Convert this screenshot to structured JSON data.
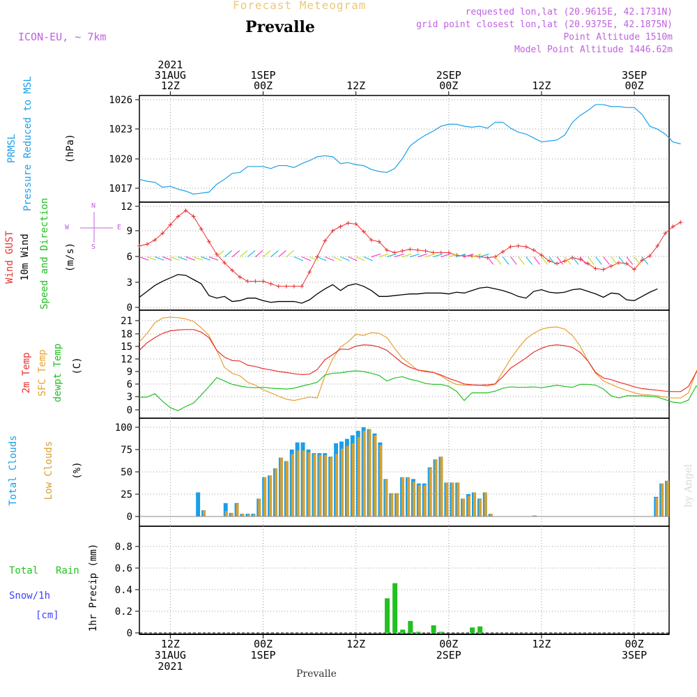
{
  "header": {
    "title": "Forecast Meteogram",
    "location": "Prevalle",
    "model": "ICON-EU, ~ 7km",
    "requested": "requested lon,lat (20.9615E, 42.1731N)",
    "grid_point": "grid point closest lon,lat (20.9375E, 42.1875N)",
    "point_alt": "Point Altitude 1510m",
    "model_alt": "Model Point Altitude 1446.62m",
    "credit": "by Angel",
    "footer": "Prevalle"
  },
  "colors": {
    "pressure": "#1a9fe8",
    "gust": "#e83030",
    "wind": "#000000",
    "temp2m": "#e83030",
    "sfctemp": "#e8a030",
    "dewpt": "#22c022",
    "total_clouds": "#1a9fe8",
    "low_clouds": "#d8a030",
    "rain": "#22c022",
    "snow": "#4040ff",
    "model_text": "#c060e0"
  },
  "time_axis": {
    "top_labels": [
      {
        "lines": [
          "2021",
          "31AUG",
          "12Z"
        ]
      },
      {
        "lines": [
          "1SEP",
          "00Z"
        ]
      },
      {
        "lines": [
          "12Z"
        ]
      },
      {
        "lines": [
          "2SEP",
          "00Z"
        ]
      },
      {
        "lines": [
          "12Z"
        ]
      },
      {
        "lines": [
          "3SEP",
          "00Z"
        ]
      }
    ],
    "bottom_labels": [
      {
        "lines": [
          "12Z",
          "31AUG",
          "2021"
        ]
      },
      {
        "lines": [
          "00Z",
          "1SEP"
        ]
      },
      {
        "lines": [
          "12Z"
        ]
      },
      {
        "lines": [
          "00Z",
          "2SEP"
        ]
      },
      {
        "lines": [
          "12Z"
        ]
      },
      {
        "lines": [
          "00Z",
          "3SEP"
        ]
      }
    ]
  },
  "panels": {
    "pressure": {
      "label1": "PRMSL",
      "label2": "Pressure Reduced to MSL",
      "unit": "(hPa)",
      "ticks": [
        "1026",
        "1023",
        "1020",
        "1017"
      ]
    },
    "wind": {
      "label_gust": "Wind GUST",
      "label_wind": "10m Wind",
      "label_dir": "Speed and Direction",
      "unit": "(m/s)",
      "ticks": [
        "12",
        "9",
        "6",
        "3",
        "0"
      ],
      "compass_n": "N",
      "compass_s": "S",
      "compass_w": "W",
      "compass_e": "E"
    },
    "temp": {
      "label1": "2m Temp",
      "label2": "SFC Temp",
      "label3": "dewpt Temp",
      "unit": "(C)",
      "ticks": [
        "21",
        "18",
        "15",
        "12",
        "9",
        "6",
        "3",
        "0"
      ]
    },
    "clouds": {
      "label1": "Total Clouds",
      "label2": "Low Clouds",
      "unit": "(%)",
      "ticks": [
        "100",
        "75",
        "50",
        "25",
        "0"
      ]
    },
    "precip": {
      "label1": "Total",
      "label2": "Rain",
      "label3": "Snow/1h",
      "label4": "[cm]",
      "axis_label": "1hr Precip (mm)",
      "ticks": [
        "0.8",
        "0.6",
        "0.4",
        "0.2",
        "0"
      ]
    }
  },
  "chart_data": [
    {
      "type": "line",
      "title": "PRMSL Pressure Reduced to MSL",
      "ylabel": "(hPa)",
      "ylim": [
        1016,
        1026.4
      ],
      "x_start": "2021-08-31 08Z",
      "x_step_hours": 1,
      "series": [
        {
          "name": "PRMSL",
          "values": [
            1017.9,
            1017.7,
            1017.6,
            1017.1,
            1017.2,
            1016.9,
            1016.7,
            1016.4,
            1016.5,
            1016.6,
            1017.4,
            1017.9,
            1018.5,
            1018.6,
            1019.2,
            1019.2,
            1019.2,
            1019.0,
            1019.3,
            1019.3,
            1019.1,
            1019.5,
            1019.8,
            1020.2,
            1020.3,
            1020.2,
            1019.5,
            1019.6,
            1019.4,
            1019.3,
            1018.9,
            1018.7,
            1018.6,
            1019.0,
            1020.0,
            1021.3,
            1021.9,
            1022.4,
            1022.8,
            1023.3,
            1023.5,
            1023.5,
            1023.3,
            1023.2,
            1023.3,
            1023.1,
            1023.7,
            1023.7,
            1023.1,
            1022.7,
            1022.5,
            1022.1,
            1021.7,
            1021.8,
            1021.9,
            1022.4,
            1023.7,
            1024.4,
            1024.9,
            1025.5,
            1025.5,
            1025.3,
            1025.3,
            1025.2,
            1025.2,
            1024.5,
            1023.3,
            1023.0,
            1022.5,
            1021.7,
            1021.5
          ]
        }
      ]
    },
    {
      "type": "line",
      "title": "Wind GUST / 10m Wind Speed and Direction",
      "ylabel": "(m/s)",
      "ylim": [
        0,
        12.3
      ],
      "x_start": "2021-08-31 08Z",
      "x_step_hours": 1,
      "series": [
        {
          "name": "Wind GUST",
          "values": [
            7.3,
            7.5,
            8.0,
            8.8,
            9.8,
            10.8,
            11.5,
            10.8,
            9.3,
            7.8,
            6.3,
            5.3,
            4.4,
            3.6,
            3.1,
            3.1,
            3.1,
            2.8,
            2.5,
            2.5,
            2.5,
            2.5,
            4.2,
            6.0,
            7.9,
            9.1,
            9.6,
            10.0,
            9.9,
            9.0,
            8.0,
            7.8,
            6.8,
            6.5,
            6.7,
            6.9,
            6.8,
            6.7,
            6.5,
            6.5,
            6.5,
            6.2,
            6.1,
            6.1,
            6.0,
            5.9,
            6.0,
            6.6,
            7.2,
            7.3,
            7.2,
            6.8,
            6.2,
            5.5,
            5.2,
            5.5,
            5.9,
            5.7,
            5.2,
            4.6,
            4.5,
            4.9,
            5.3,
            5.2,
            4.5,
            5.6,
            6.1,
            7.3,
            8.8,
            9.6,
            10.1
          ]
        },
        {
          "name": "10m Wind",
          "values": [
            1.2,
            1.9,
            2.6,
            3.1,
            3.5,
            3.9,
            3.8,
            3.3,
            2.8,
            1.4,
            1.1,
            1.3,
            0.7,
            0.8,
            1.1,
            1.1,
            0.8,
            0.6,
            0.7,
            0.7,
            0.7,
            0.5,
            0.9,
            1.6,
            2.2,
            2.7,
            2.0,
            2.6,
            2.8,
            2.5,
            2.0,
            1.3,
            1.3,
            1.4,
            1.5,
            1.6,
            1.6,
            1.7,
            1.7,
            1.7,
            1.6,
            1.8,
            1.7,
            2.0,
            2.3,
            2.4,
            2.2,
            2.0,
            1.7,
            1.3,
            1.1,
            1.9,
            2.1,
            1.8,
            1.7,
            1.8,
            2.1,
            2.2,
            1.9,
            1.6,
            1.2,
            1.7,
            1.6,
            0.9,
            0.8,
            1.3,
            1.8,
            2.2
          ]
        }
      ]
    },
    {
      "type": "line",
      "title": "2m Temp / SFC Temp / dewpt Temp",
      "ylabel": "(C)",
      "ylim": [
        -1,
        22.5
      ],
      "x_start": "2021-08-31 08Z",
      "x_step_hours": 1,
      "series": [
        {
          "name": "2m Temp",
          "values": [
            14.0,
            15.8,
            17.0,
            18.0,
            18.6,
            18.8,
            18.9,
            18.9,
            18.3,
            17.0,
            14.0,
            12.4,
            11.6,
            11.5,
            10.5,
            10.2,
            9.7,
            9.4,
            9.0,
            8.8,
            8.5,
            8.3,
            8.4,
            9.5,
            11.8,
            13.0,
            14.3,
            14.2,
            15.0,
            15.3,
            15.2,
            14.8,
            14.0,
            12.5,
            11.0,
            10.0,
            9.4,
            9.0,
            8.8,
            8.2,
            7.4,
            6.8,
            6.1,
            5.9,
            5.8,
            5.9,
            6.1,
            7.8,
            9.8,
            11.0,
            12.2,
            13.6,
            14.5,
            15.1,
            15.3,
            15.1,
            14.7,
            13.5,
            11.5,
            8.8,
            7.5,
            7.1,
            6.5,
            6.0,
            5.4,
            5.0,
            4.8,
            4.6,
            4.4,
            4.3,
            4.3,
            5.5,
            8.8,
            11.0,
            12.5,
            14.0,
            15.6,
            17.0
          ]
        },
        {
          "name": "SFC Temp",
          "values": [
            16.0,
            18.0,
            20.5,
            21.6,
            21.8,
            21.7,
            21.4,
            20.8,
            19.3,
            17.5,
            14.0,
            10.0,
            8.6,
            8.0,
            6.5,
            5.8,
            4.7,
            4.0,
            3.2,
            2.5,
            2.2,
            2.6,
            3.0,
            2.8,
            8.0,
            12.0,
            14.8,
            16.0,
            17.8,
            17.5,
            18.2,
            18.0,
            17.0,
            14.5,
            12.2,
            10.8,
            9.3,
            9.2,
            8.8,
            8.0,
            6.8,
            6.0,
            5.8,
            5.8,
            5.8,
            5.6,
            6.0,
            9.0,
            12.0,
            14.5,
            16.7,
            18.0,
            19.0,
            19.4,
            19.5,
            19.0,
            17.5,
            15.0,
            11.5,
            8.6,
            6.8,
            6.0,
            5.2,
            4.6,
            4.0,
            3.6,
            3.5,
            3.3,
            3.0,
            2.8,
            2.8,
            4.0,
            9.0,
            12.5,
            15.0,
            17.0,
            19.0,
            21.0
          ]
        },
        {
          "name": "dewpt Temp",
          "values": [
            3.0,
            3.0,
            3.8,
            2.0,
            0.5,
            -0.2,
            0.8,
            1.6,
            3.5,
            5.5,
            7.6,
            6.8,
            6.0,
            5.6,
            5.3,
            5.2,
            5.3,
            5.1,
            5.0,
            4.9,
            5.1,
            5.6,
            6.0,
            6.5,
            8.2,
            8.6,
            8.7,
            9.0,
            9.2,
            9.0,
            8.6,
            8.1,
            6.8,
            7.5,
            7.8,
            7.2,
            6.8,
            6.2,
            6.0,
            6.0,
            5.5,
            4.4,
            2.2,
            4.0,
            4.0,
            4.0,
            4.4,
            5.1,
            5.4,
            5.3,
            5.3,
            5.4,
            5.2,
            5.5,
            5.8,
            5.5,
            5.3,
            6.0,
            6.0,
            5.8,
            4.9,
            3.3,
            2.8,
            3.3,
            3.3,
            3.3,
            3.2,
            3.0,
            2.4,
            1.8,
            1.6,
            2.3,
            5.6,
            4.7,
            6.0,
            7.5,
            8.3,
            8.8
          ]
        }
      ]
    },
    {
      "type": "bar",
      "title": "Total Clouds / Low Clouds",
      "ylabel": "(%)",
      "ylim": [
        0,
        110
      ],
      "x_start": "2021-08-31 08Z",
      "x_step_hours": 1,
      "series": [
        {
          "name": "Total Clouds",
          "values": [
            0,
            0,
            0,
            0,
            0,
            0,
            0,
            0,
            0,
            0,
            27,
            7,
            0,
            0,
            0,
            15,
            4,
            15,
            3,
            3,
            3,
            20,
            44,
            46,
            54,
            66,
            62,
            75,
            83,
            83,
            75,
            71,
            71,
            71,
            67,
            82,
            84,
            87,
            91,
            96,
            100,
            98,
            93,
            83,
            42,
            26,
            26,
            44,
            44,
            42,
            37,
            37,
            55,
            64,
            67,
            38,
            38,
            38,
            20,
            25,
            27,
            20,
            27,
            3,
            0,
            0,
            0,
            0,
            0,
            0,
            0,
            1,
            0,
            0,
            0,
            0,
            0,
            0,
            0,
            0,
            0,
            0,
            0,
            0,
            0,
            0,
            0,
            0,
            0,
            0,
            0,
            0,
            0,
            22,
            37,
            40
          ]
        },
        {
          "name": "Low Clouds",
          "values": [
            0,
            0,
            0,
            0,
            0,
            0,
            0,
            0,
            0,
            0,
            0,
            7,
            0,
            0,
            0,
            6,
            4,
            14,
            3,
            2,
            2,
            20,
            44,
            46,
            54,
            66,
            62,
            70,
            74,
            74,
            72,
            70,
            69,
            69,
            66,
            70,
            76,
            79,
            82,
            89,
            96,
            98,
            91,
            80,
            42,
            26,
            26,
            44,
            44,
            39,
            35,
            35,
            54,
            64,
            67,
            38,
            38,
            38,
            20,
            23,
            27,
            19,
            27,
            3,
            0,
            0,
            0,
            0,
            0,
            0,
            0,
            1,
            0,
            0,
            0,
            0,
            0,
            0,
            0,
            0,
            0,
            0,
            0,
            0,
            0,
            0,
            0,
            0,
            0,
            0,
            0,
            0,
            0,
            21,
            37,
            40
          ]
        }
      ]
    },
    {
      "type": "bar",
      "title": "Total Rain / Snow 1h",
      "ylabel": "1hr Precip (mm)",
      "ylim": [
        0,
        1.0
      ],
      "x_start": "2021-08-31 08Z",
      "x_step_hours": 1,
      "series": [
        {
          "name": "Total Rain",
          "values": [
            0,
            0,
            0,
            0,
            0,
            0,
            0,
            0,
            0,
            0,
            0,
            0,
            0,
            0,
            0,
            0,
            0,
            0,
            0,
            0,
            0,
            0,
            0,
            0,
            0,
            0,
            0,
            0,
            0,
            0,
            0,
            0,
            0.32,
            0.46,
            0.03,
            0.11,
            0.01,
            0,
            0.07,
            0.01,
            0,
            0,
            0,
            0.05,
            0.06
          ]
        }
      ]
    }
  ]
}
